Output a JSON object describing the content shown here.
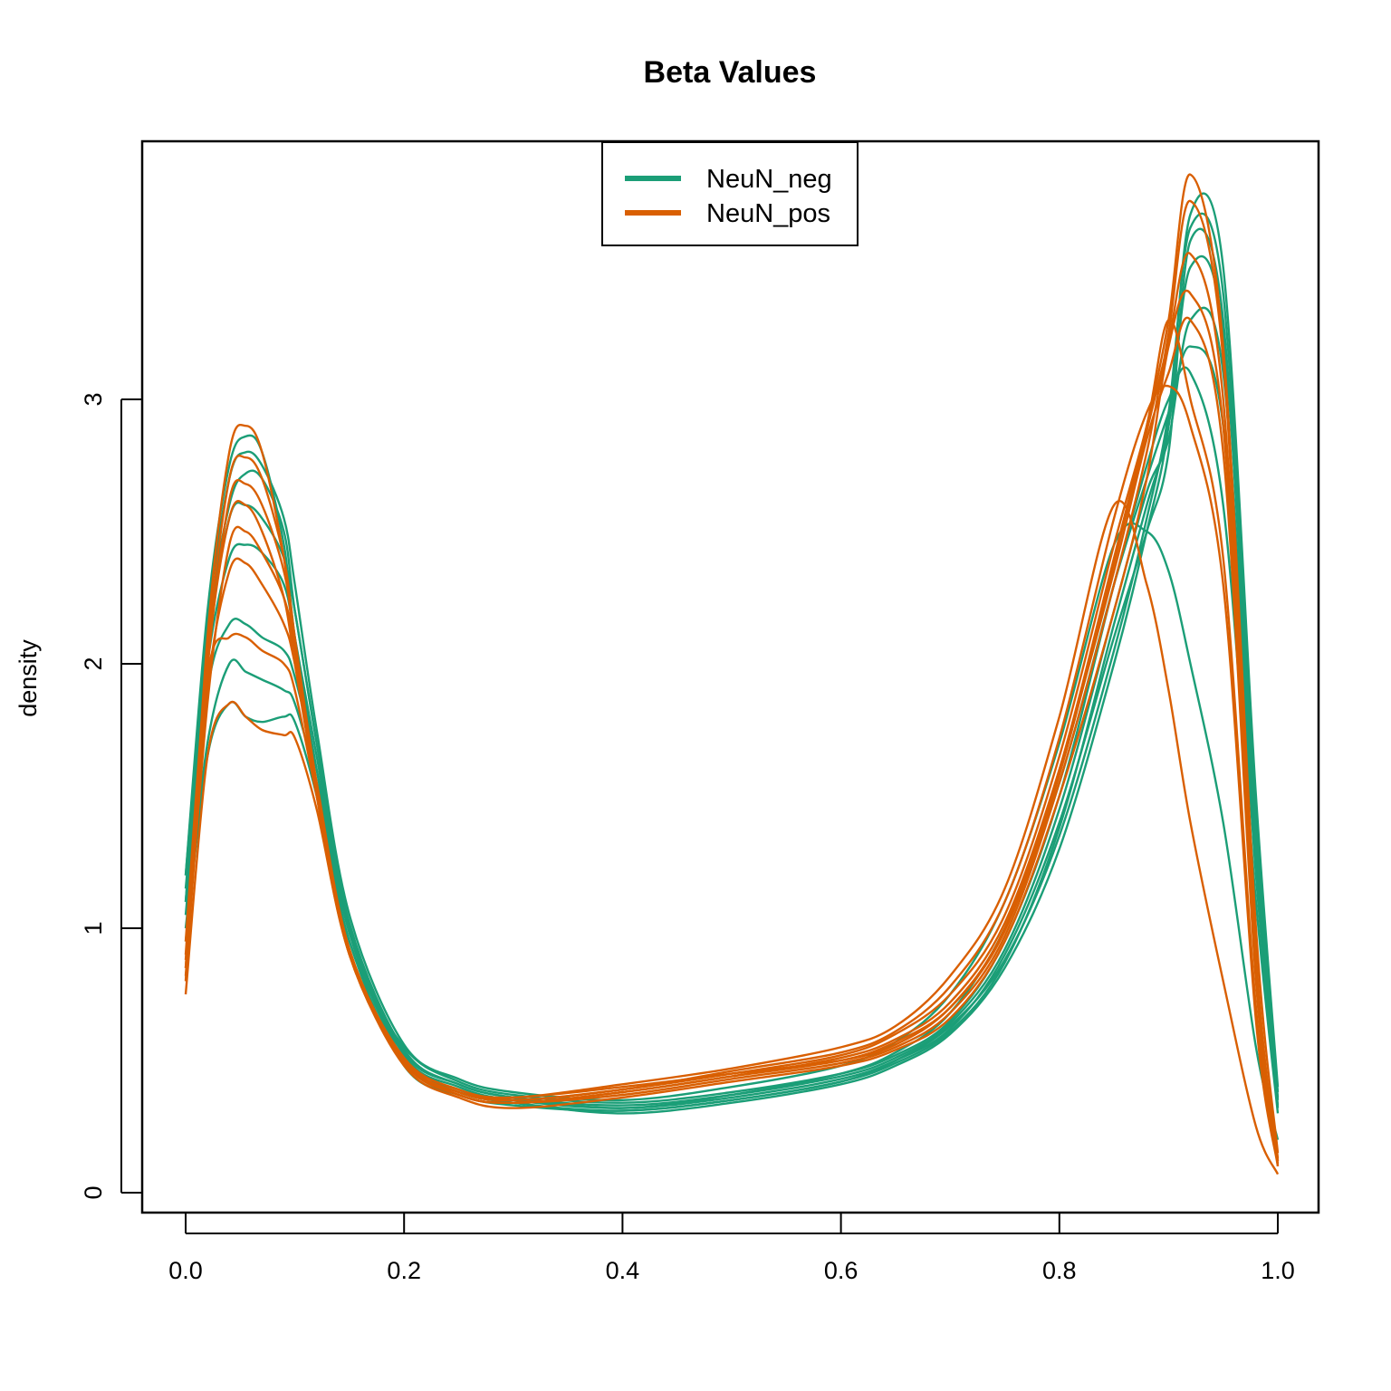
{
  "chart_data": {
    "type": "line",
    "title": "Beta Values",
    "xlabel": "",
    "ylabel": "density",
    "xlim": [
      0.0,
      1.0
    ],
    "ylim": [
      0,
      3.9
    ],
    "x_ticks": [
      "0.0",
      "0.2",
      "0.4",
      "0.6",
      "0.8",
      "1.0"
    ],
    "y_ticks": [
      "0",
      "1",
      "2",
      "3"
    ],
    "grid": false,
    "legend": {
      "position": "top-center",
      "entries": [
        {
          "label": "NeuN_neg",
          "color": "#1B9E77"
        },
        {
          "label": "NeuN_pos",
          "color": "#D95F02"
        }
      ]
    },
    "x": [
      0.0,
      0.02,
      0.04,
      0.055,
      0.07,
      0.09,
      0.1,
      0.12,
      0.15,
      0.2,
      0.25,
      0.3,
      0.4,
      0.5,
      0.6,
      0.65,
      0.7,
      0.75,
      0.8,
      0.85,
      0.88,
      0.9,
      0.92,
      0.95,
      0.98,
      1.0
    ],
    "series": [
      {
        "group": "NeuN_neg",
        "color": "#1B9E77",
        "values": [
          1.2,
          2.2,
          2.75,
          2.86,
          2.8,
          2.45,
          2.1,
          1.6,
          0.95,
          0.55,
          0.42,
          0.37,
          0.34,
          0.38,
          0.45,
          0.52,
          0.65,
          0.95,
          1.5,
          2.3,
          2.75,
          3.0,
          3.1,
          2.6,
          1.1,
          0.3
        ]
      },
      {
        "group": "NeuN_neg",
        "color": "#1B9E77",
        "values": [
          1.1,
          2.1,
          2.6,
          2.72,
          2.7,
          2.5,
          2.2,
          1.7,
          1.0,
          0.52,
          0.4,
          0.35,
          0.32,
          0.36,
          0.43,
          0.5,
          0.62,
          0.9,
          1.4,
          2.1,
          2.5,
          2.8,
          3.6,
          3.3,
          1.3,
          0.35
        ]
      },
      {
        "group": "NeuN_neg",
        "color": "#1B9E77",
        "values": [
          1.0,
          1.7,
          2.0,
          1.97,
          1.94,
          1.9,
          1.85,
          1.55,
          1.0,
          0.5,
          0.38,
          0.34,
          0.3,
          0.34,
          0.41,
          0.48,
          0.6,
          0.85,
          1.3,
          2.0,
          2.5,
          2.9,
          3.7,
          3.5,
          1.5,
          0.4
        ]
      },
      {
        "group": "NeuN_neg",
        "color": "#1B9E77",
        "values": [
          0.95,
          1.65,
          1.85,
          1.8,
          1.78,
          1.8,
          1.78,
          1.5,
          0.95,
          0.48,
          0.37,
          0.33,
          0.31,
          0.35,
          0.42,
          0.5,
          0.63,
          0.88,
          1.35,
          2.05,
          2.55,
          2.95,
          3.65,
          3.4,
          1.4,
          0.38
        ]
      },
      {
        "group": "NeuN_neg",
        "color": "#1B9E77",
        "values": [
          1.15,
          2.0,
          2.4,
          2.45,
          2.42,
          2.3,
          2.1,
          1.65,
          1.0,
          0.53,
          0.41,
          0.36,
          0.33,
          0.37,
          0.44,
          0.51,
          0.64,
          0.92,
          1.45,
          2.2,
          2.65,
          2.85,
          3.3,
          3.1,
          1.25,
          0.32
        ]
      },
      {
        "group": "NeuN_neg",
        "color": "#1B9E77",
        "values": [
          1.05,
          1.9,
          2.15,
          2.15,
          2.1,
          2.05,
          1.95,
          1.6,
          0.98,
          0.5,
          0.39,
          0.34,
          0.31,
          0.35,
          0.42,
          0.49,
          0.61,
          0.87,
          1.38,
          2.15,
          2.6,
          2.9,
          3.5,
          3.25,
          1.35,
          0.36
        ]
      },
      {
        "group": "NeuN_neg",
        "color": "#1B9E77",
        "values": [
          1.2,
          2.15,
          2.7,
          2.8,
          2.75,
          2.55,
          2.3,
          1.75,
          1.05,
          0.56,
          0.43,
          0.38,
          0.35,
          0.4,
          0.48,
          0.57,
          0.75,
          1.1,
          1.7,
          2.45,
          2.5,
          2.35,
          2.0,
          1.4,
          0.55,
          0.2
        ]
      },
      {
        "group": "NeuN_neg",
        "color": "#1B9E77",
        "values": [
          1.1,
          2.05,
          2.55,
          2.6,
          2.55,
          2.4,
          2.2,
          1.7,
          1.02,
          0.54,
          0.41,
          0.36,
          0.32,
          0.37,
          0.45,
          0.53,
          0.68,
          1.0,
          1.55,
          2.3,
          2.7,
          2.95,
          3.2,
          2.9,
          1.2,
          0.33
        ]
      },
      {
        "group": "NeuN_pos",
        "color": "#D95F02",
        "values": [
          0.8,
          2.1,
          2.8,
          2.9,
          2.8,
          2.4,
          2.05,
          1.5,
          0.9,
          0.5,
          0.38,
          0.36,
          0.4,
          0.45,
          0.5,
          0.56,
          0.7,
          1.0,
          1.6,
          2.4,
          2.9,
          3.3,
          3.85,
          3.2,
          1.0,
          0.15
        ]
      },
      {
        "group": "NeuN_pos",
        "color": "#D95F02",
        "values": [
          0.85,
          1.9,
          2.35,
          2.38,
          2.3,
          2.15,
          2.0,
          1.55,
          0.92,
          0.5,
          0.37,
          0.34,
          0.37,
          0.43,
          0.49,
          0.55,
          0.68,
          0.97,
          1.55,
          2.3,
          2.8,
          3.25,
          3.75,
          3.15,
          0.9,
          0.12
        ]
      },
      {
        "group": "NeuN_pos",
        "color": "#D95F02",
        "values": [
          0.75,
          1.65,
          1.85,
          1.8,
          1.75,
          1.73,
          1.72,
          1.45,
          0.9,
          0.48,
          0.36,
          0.32,
          0.36,
          0.42,
          0.48,
          0.54,
          0.66,
          0.95,
          1.5,
          2.2,
          2.7,
          3.2,
          3.4,
          2.9,
          0.85,
          0.1
        ]
      },
      {
        "group": "NeuN_pos",
        "color": "#D95F02",
        "values": [
          0.9,
          2.0,
          2.55,
          2.6,
          2.5,
          2.25,
          2.0,
          1.52,
          0.9,
          0.5,
          0.38,
          0.35,
          0.39,
          0.45,
          0.52,
          0.6,
          0.75,
          1.05,
          1.65,
          2.45,
          2.9,
          3.3,
          3.0,
          2.4,
          0.7,
          0.12
        ]
      },
      {
        "group": "NeuN_pos",
        "color": "#D95F02",
        "values": [
          0.85,
          1.95,
          2.1,
          2.1,
          2.05,
          2.0,
          1.9,
          1.5,
          0.9,
          0.49,
          0.37,
          0.34,
          0.38,
          0.44,
          0.51,
          0.58,
          0.72,
          1.02,
          1.6,
          2.35,
          2.85,
          3.1,
          3.3,
          2.8,
          0.8,
          0.11
        ]
      },
      {
        "group": "NeuN_pos",
        "color": "#D95F02",
        "values": [
          0.95,
          2.05,
          2.7,
          2.78,
          2.7,
          2.4,
          2.1,
          1.55,
          0.92,
          0.51,
          0.39,
          0.36,
          0.41,
          0.47,
          0.55,
          0.63,
          0.82,
          1.15,
          1.8,
          2.6,
          2.3,
          1.9,
          1.4,
          0.8,
          0.25,
          0.07
        ]
      },
      {
        "group": "NeuN_pos",
        "color": "#D95F02",
        "values": [
          0.82,
          1.85,
          2.45,
          2.5,
          2.42,
          2.25,
          2.05,
          1.53,
          0.91,
          0.5,
          0.37,
          0.34,
          0.38,
          0.44,
          0.5,
          0.57,
          0.7,
          0.99,
          1.58,
          2.38,
          2.88,
          3.22,
          3.55,
          3.0,
          0.88,
          0.13
        ]
      },
      {
        "group": "NeuN_pos",
        "color": "#D95F02",
        "values": [
          0.88,
          1.98,
          2.62,
          2.68,
          2.6,
          2.35,
          2.08,
          1.54,
          0.91,
          0.5,
          0.38,
          0.35,
          0.39,
          0.46,
          0.53,
          0.61,
          0.78,
          1.1,
          1.72,
          2.55,
          2.95,
          3.05,
          2.9,
          2.3,
          0.65,
          0.1
        ]
      }
    ]
  }
}
